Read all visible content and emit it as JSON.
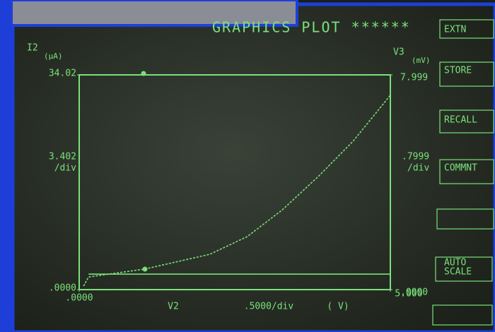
{
  "chart_data": {
    "type": "line",
    "title": "GRAPHICS PLOT ******",
    "ylabel": "I2",
    "yunit": "(µA)",
    "y2label": "V3",
    "y2unit": "(mV)",
    "y_scale_label": "3.402",
    "y_scale_unit": "/div",
    "y2_scale_label": ".7999",
    "y2_scale_unit": "/div",
    "xlabel": "V2",
    "x_scale_label": ".5000/div",
    "x_unit": "( V)",
    "xlim": [
      0,
      5
    ],
    "xticks": [
      {
        "value": 0,
        "label": ".0000"
      },
      {
        "value": 5,
        "label": "5.000"
      }
    ],
    "ylim": [
      0,
      34.02
    ],
    "yticks": [
      {
        "value": 34.02,
        "label": "34.02"
      },
      {
        "value": 0,
        "label": ".0000"
      }
    ],
    "y2lim": [
      0,
      7.999
    ],
    "y2ticks": [
      {
        "value": 7.999,
        "label": "7.999"
      },
      {
        "value": 0,
        "label": ".0000"
      }
    ],
    "color": "#7be07b",
    "series": [
      {
        "style": "dashed",
        "color": "#7be07b",
        "x": [
          0.07,
          0.15,
          1.05,
          2.1,
          2.7,
          3.26,
          3.84,
          4.4,
          5.0
        ],
        "values": [
          0.56,
          2.0,
          3.25,
          5.6,
          8.4,
          12.6,
          17.9,
          23.5,
          30.8
        ]
      },
      {
        "style": "solid",
        "color": "#7be07b",
        "x": [
          0.15,
          5.0
        ],
        "values": [
          2.46,
          2.46
        ]
      }
    ],
    "softkeys": [
      "EXTN",
      "STORE",
      "RECALL",
      "COMMNT",
      "AUTO",
      "SCALE"
    ]
  }
}
